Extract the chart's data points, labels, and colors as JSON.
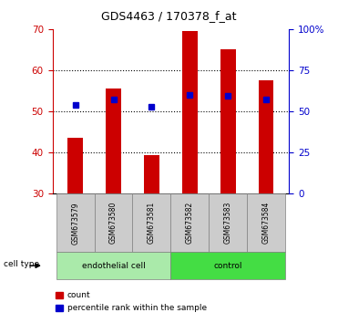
{
  "title": "GDS4463 / 170378_f_at",
  "samples": [
    "GSM673579",
    "GSM673580",
    "GSM673581",
    "GSM673582",
    "GSM673583",
    "GSM673584"
  ],
  "counts": [
    43.5,
    55.5,
    39.5,
    69.5,
    65.0,
    57.5
  ],
  "percentile_ranks": [
    54,
    57.5,
    53,
    60,
    59.5,
    57.5
  ],
  "ylim_left": [
    30,
    70
  ],
  "ylim_right": [
    0,
    100
  ],
  "yticks_left": [
    30,
    40,
    50,
    60,
    70
  ],
  "yticks_right": [
    0,
    25,
    50,
    75,
    100
  ],
  "ytick_labels_right": [
    "0",
    "25",
    "50",
    "75",
    "100%"
  ],
  "groups": [
    {
      "label": "endothelial cell",
      "indices": [
        0,
        1,
        2
      ],
      "color": "#aaeaaa"
    },
    {
      "label": "control",
      "indices": [
        3,
        4,
        5
      ],
      "color": "#44dd44"
    }
  ],
  "bar_color": "#cc0000",
  "dot_color": "#0000cc",
  "bar_width": 0.4,
  "background_color": "#ffffff",
  "label_count": "count",
  "label_percentile": "percentile rank within the sample",
  "cell_type_label": "cell type",
  "sample_bg_color": "#cccccc",
  "right_axis_color": "#0000cc",
  "left_axis_color": "#cc0000"
}
